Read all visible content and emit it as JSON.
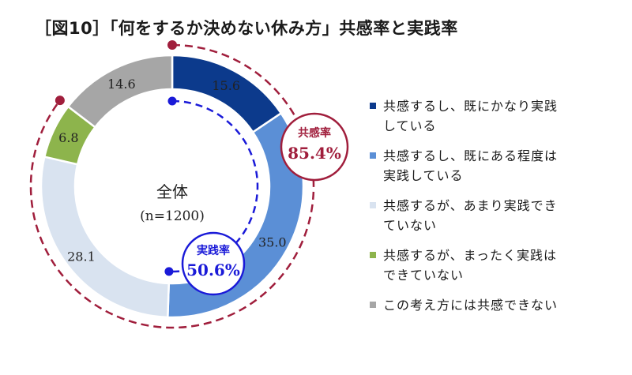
{
  "title": "［図10］「何をするか決めない休み方」共感率と実践率",
  "chart_data": {
    "type": "donut",
    "center_label": "全体",
    "center_sublabel": "(n=1200)",
    "segments": [
      {
        "name": "共感するし、既にかなり実践している",
        "value": 15.6,
        "label": "15.6",
        "color": "#0c3a8c"
      },
      {
        "name": "共感するし、既にある程度は実践している",
        "value": 35.0,
        "label": "35.0",
        "color": "#5b8fd6"
      },
      {
        "name": "共感するが、あまり実践できていない",
        "value": 28.1,
        "label": "28.1",
        "color": "#d9e3f0"
      },
      {
        "name": "共感するが、まったく実践はできていない",
        "value": 6.8,
        "label": "6.8",
        "color": "#8db44c"
      },
      {
        "name": "この考え方には共感できない",
        "value": 14.6,
        "label": "14.6",
        "color": "#a6a6a6"
      }
    ],
    "legend": [
      {
        "lines": [
          "共感するし、既にかなり実践",
          "している"
        ],
        "color": "#0c3a8c"
      },
      {
        "lines": [
          "共感するし、既にある程度は",
          "実践している"
        ],
        "color": "#5b8fd6"
      },
      {
        "lines": [
          "共感するが、あまり実践でき",
          "ていない"
        ],
        "color": "#d9e3f0"
      },
      {
        "lines": [
          "共感するが、まったく実践は",
          "できていない"
        ],
        "color": "#8db44c"
      },
      {
        "lines": [
          "この考え方には共感できない"
        ],
        "color": "#a6a6a6"
      }
    ],
    "legend_position": "right",
    "annotations": {
      "empathy": {
        "label": "共感率",
        "value": "85.4%",
        "percent": 85.4,
        "color": "#a01e3c"
      },
      "practice": {
        "label": "実践率",
        "value": "50.6%",
        "percent": 50.6,
        "color": "#1a1ad8"
      }
    }
  }
}
